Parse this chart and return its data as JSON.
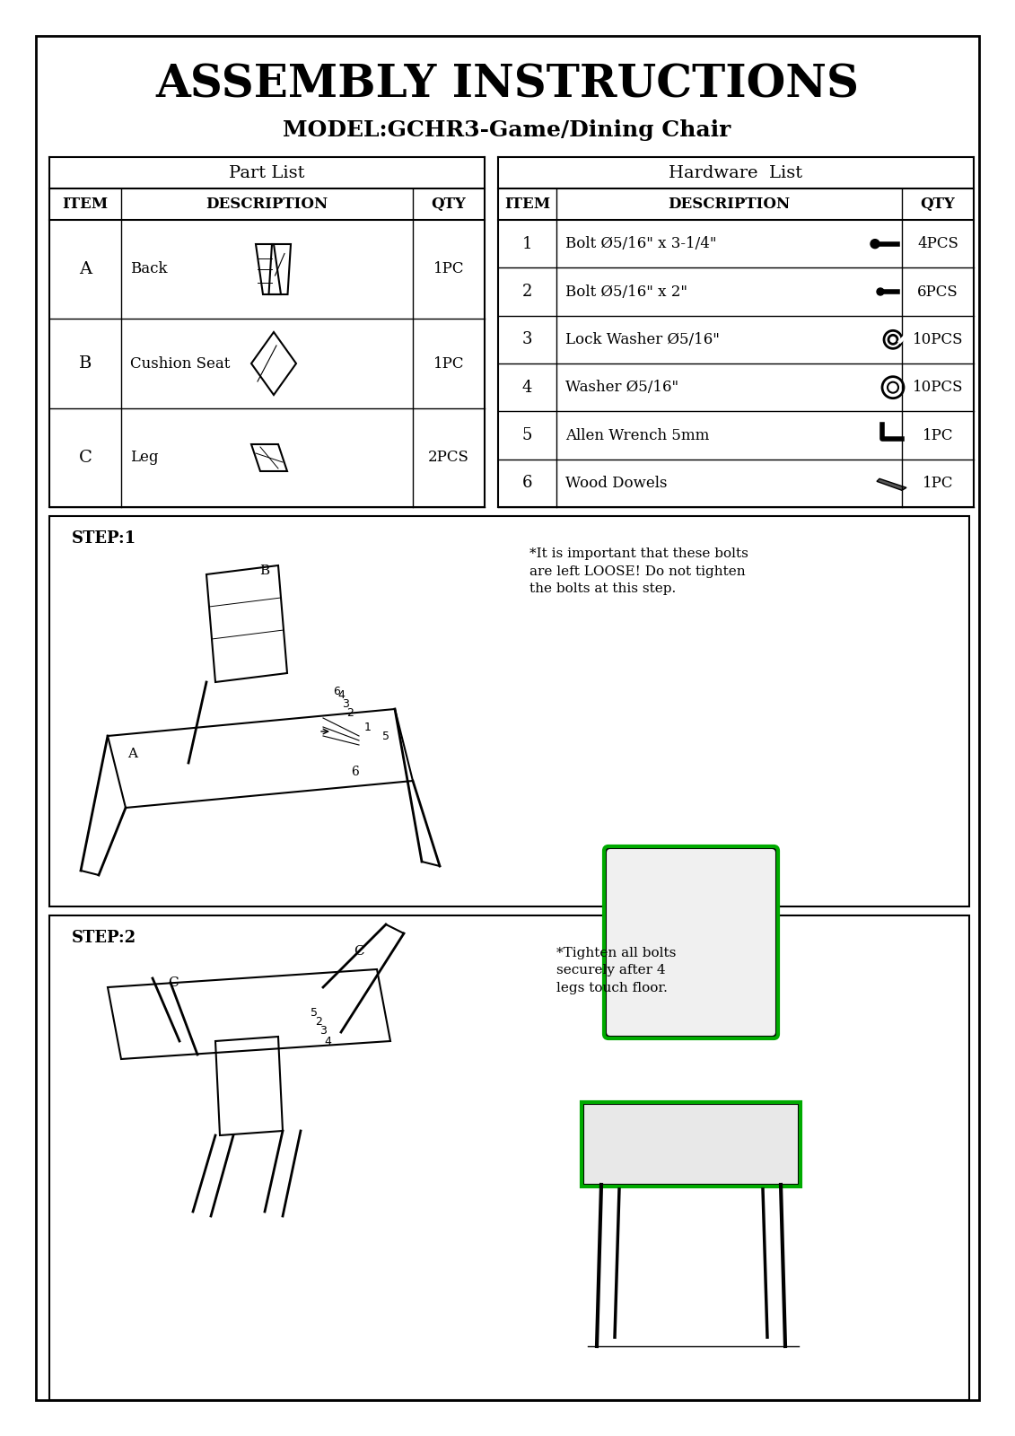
{
  "title": "ASSEMBLY INSTRUCTIONS",
  "subtitle": "MODEL:GCHR3-Game/Dining Chair",
  "bg_color": "#ffffff",
  "border_color": "#000000",
  "part_list_header": "Part List",
  "hardware_list_header": "Hardware  List",
  "col_headers": [
    "ITEM",
    "DESCRIPTION",
    "QTY"
  ],
  "parts": [
    {
      "item": "A",
      "desc": "Back",
      "qty": "1PC"
    },
    {
      "item": "B",
      "desc": "Cushion Seat",
      "qty": "1PC"
    },
    {
      "item": "C",
      "desc": "Leg",
      "qty": "2PCS"
    }
  ],
  "hardware": [
    {
      "item": "1",
      "desc": "Bolt Ø5/16\" x 3-1/4\"",
      "qty": "4PCS"
    },
    {
      "item": "2",
      "desc": "Bolt Ø5/16\" x 2\"",
      "qty": "6PCS"
    },
    {
      "item": "3",
      "desc": "Lock Washer Ø5/16\"",
      "qty": "10PCS"
    },
    {
      "item": "4",
      "desc": "Washer Ø5/16\"",
      "qty": "10PCS"
    },
    {
      "item": "5",
      "desc": "Allen Wrench 5mm",
      "qty": "1PC"
    },
    {
      "item": "6",
      "desc": "Wood Dowels",
      "qty": "1PC"
    }
  ],
  "step1_label": "STEP:1",
  "step2_label": "STEP:2",
  "step1_note": "*It is important that these bolts\nare left LOOSE! Do not tighten\nthe bolts at this step.",
  "step2_note": "*Tighten all bolts\nsecurely after 4\nlegs touch floor."
}
